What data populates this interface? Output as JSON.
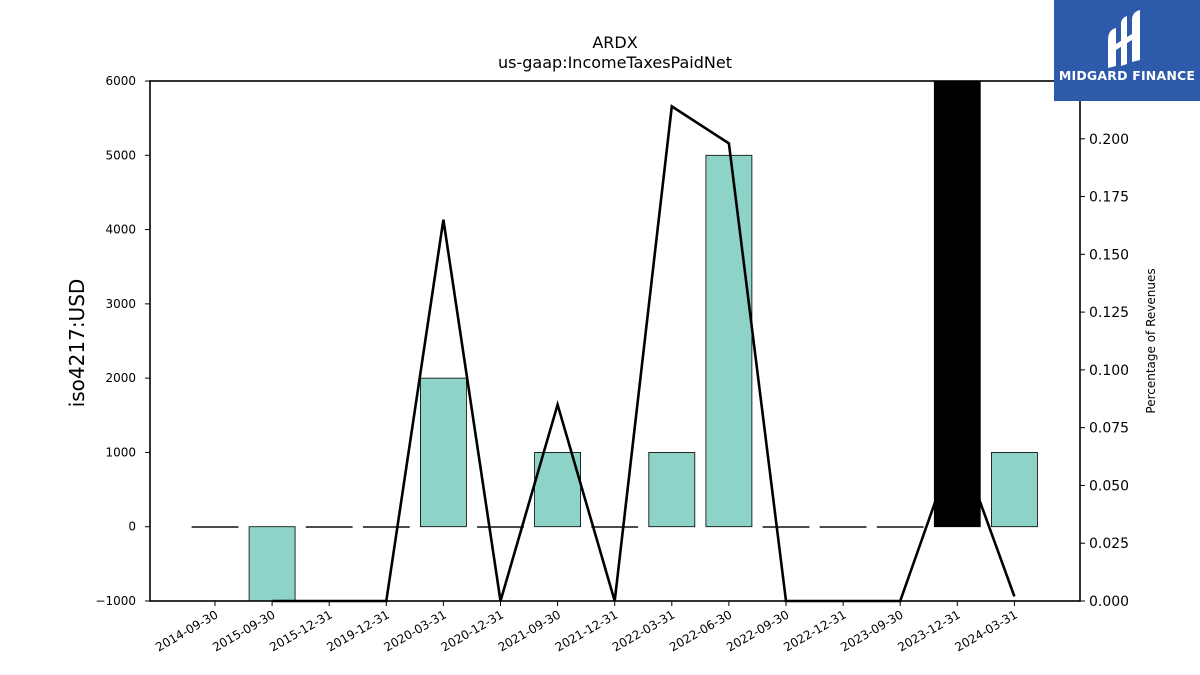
{
  "logo": {
    "text": "MIDGARD FINANCE"
  },
  "chart_data": {
    "type": "bar",
    "title": "ARDX",
    "subtitle": "us-gaap:IncomeTaxesPaidNet",
    "ylabel": "iso4217:USD",
    "y2label": "Percentage of Revenues",
    "ylim": [
      -1000,
      6000
    ],
    "y2lim": [
      0,
      0.225
    ],
    "yticks": [
      -1000,
      0,
      1000,
      2000,
      3000,
      4000,
      5000,
      6000
    ],
    "ytick_labels": [
      "−1000",
      "0",
      "1000",
      "2000",
      "3000",
      "4000",
      "5000",
      "6000"
    ],
    "y2ticks": [
      0.0,
      0.025,
      0.05,
      0.075,
      0.1,
      0.125,
      0.15,
      0.175,
      0.2
    ],
    "y2tick_labels": [
      "0.000",
      "0.025",
      "0.050",
      "0.075",
      "0.100",
      "0.125",
      "0.150",
      "0.175",
      "0.200"
    ],
    "categories": [
      "2014-09-30",
      "2015-09-30",
      "2015-12-31",
      "2019-12-31",
      "2020-03-31",
      "2020-12-31",
      "2021-09-30",
      "2021-12-31",
      "2022-03-31",
      "2022-06-30",
      "2022-09-30",
      "2022-12-31",
      "2023-09-30",
      "2023-12-31",
      "2024-03-31"
    ],
    "series": [
      {
        "kind": "bar",
        "values": [
          0,
          -1000,
          0,
          0,
          2000,
          0,
          1000,
          0,
          1000,
          5000,
          0,
          0,
          0,
          6000,
          1000
        ],
        "color": "#8dd3c7",
        "highlight_color": "#000000",
        "highlight_index": 13
      },
      {
        "kind": "line",
        "axis": "right",
        "values": [
          null,
          0.0,
          0.0,
          0.0,
          0.165,
          0.0,
          0.085,
          0.0,
          0.214,
          0.198,
          0.0,
          0.0,
          0.0,
          0.07,
          0.002
        ],
        "color": "#000000"
      }
    ],
    "grid": false
  }
}
